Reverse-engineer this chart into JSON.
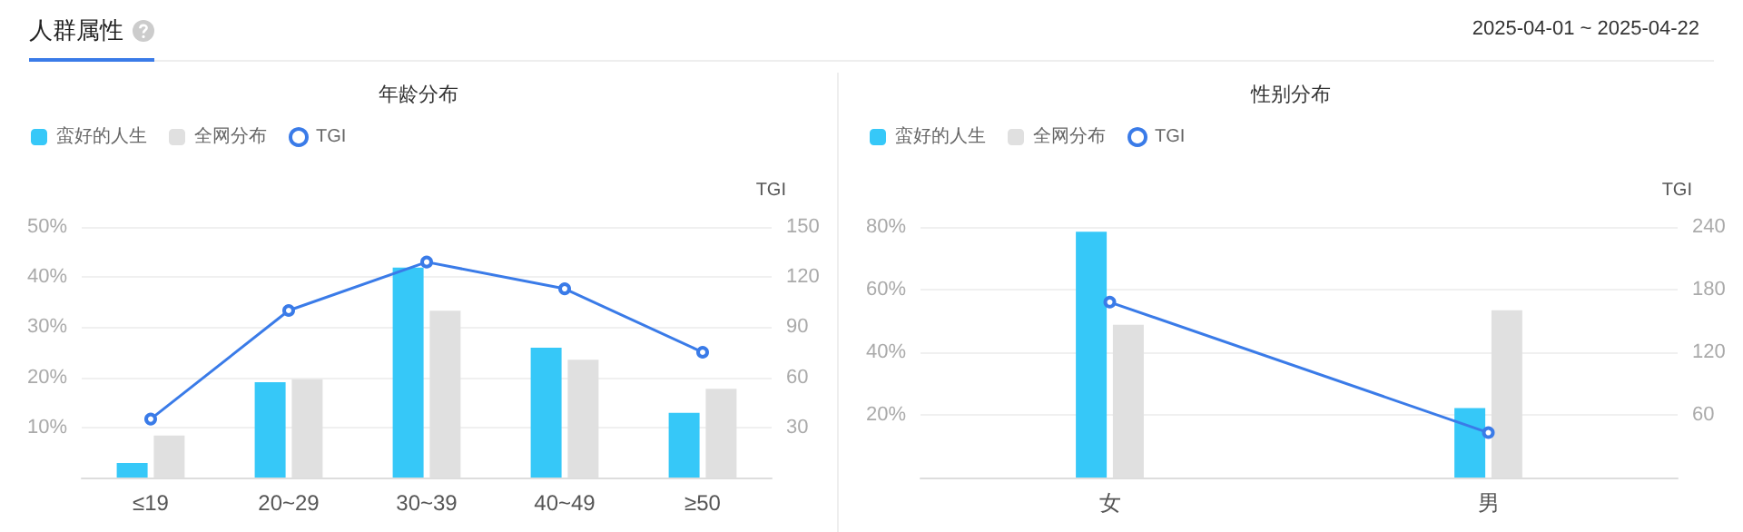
{
  "chart_data": [
    {
      "type": "bar",
      "title": "年龄分布",
      "annotations": [
        "人群属性",
        "2025-04-01 ~ 2025-04-22"
      ],
      "categories": [
        "≤19",
        "20~29",
        "30~39",
        "40~49",
        "≥50"
      ],
      "y2label": "TGI",
      "legend": "top left",
      "grid": "y",
      "ylim": [
        0,
        50
      ],
      "yticks": [
        {
          "value": 10,
          "label": "10%"
        },
        {
          "value": 20,
          "label": "20%"
        },
        {
          "value": 30,
          "label": "30%"
        },
        {
          "value": 40,
          "label": "40%"
        },
        {
          "value": 50,
          "label": "50%"
        }
      ],
      "y2lim": [
        0,
        150
      ],
      "y2ticks": [
        30,
        60,
        90,
        120,
        150
      ],
      "series": [
        {
          "name": "蛮好的人生",
          "color": "#36c8f8",
          "values": [
            2.9,
            19,
            41.9,
            25.9,
            12.9
          ]
        },
        {
          "name": "全网分布",
          "color": "#e0e0e0",
          "values": [
            8.4,
            19.6,
            33.3,
            23.5,
            17.7
          ]
        },
        {
          "name": "TGI",
          "type": "line",
          "axis": "y2",
          "marker": "circle",
          "color": "#3a7be8",
          "values": [
            35,
            100,
            129,
            113,
            75
          ]
        }
      ]
    },
    {
      "type": "bar",
      "title": "性别分布",
      "categories": [
        "女",
        "男"
      ],
      "y2label": "TGI",
      "legend": "top left",
      "grid": "y",
      "ylim": [
        0,
        80
      ],
      "yticks": [
        {
          "value": 20,
          "label": "20%"
        },
        {
          "value": 40,
          "label": "40%"
        },
        {
          "value": 60,
          "label": "60%"
        },
        {
          "value": 80,
          "label": "80%"
        }
      ],
      "y2lim": [
        0,
        240
      ],
      "y2ticks": [
        60,
        120,
        180,
        240
      ],
      "series": [
        {
          "name": "蛮好的人生",
          "color": "#36c8f8",
          "values": [
            78.5,
            22.2
          ]
        },
        {
          "name": "全网分布",
          "color": "#e0e0e0",
          "values": [
            48.8,
            53.4
          ]
        },
        {
          "name": "TGI",
          "type": "line",
          "axis": "y2",
          "marker": "circle",
          "color": "#3a7be8",
          "values": [
            168,
            43
          ]
        }
      ]
    }
  ]
}
